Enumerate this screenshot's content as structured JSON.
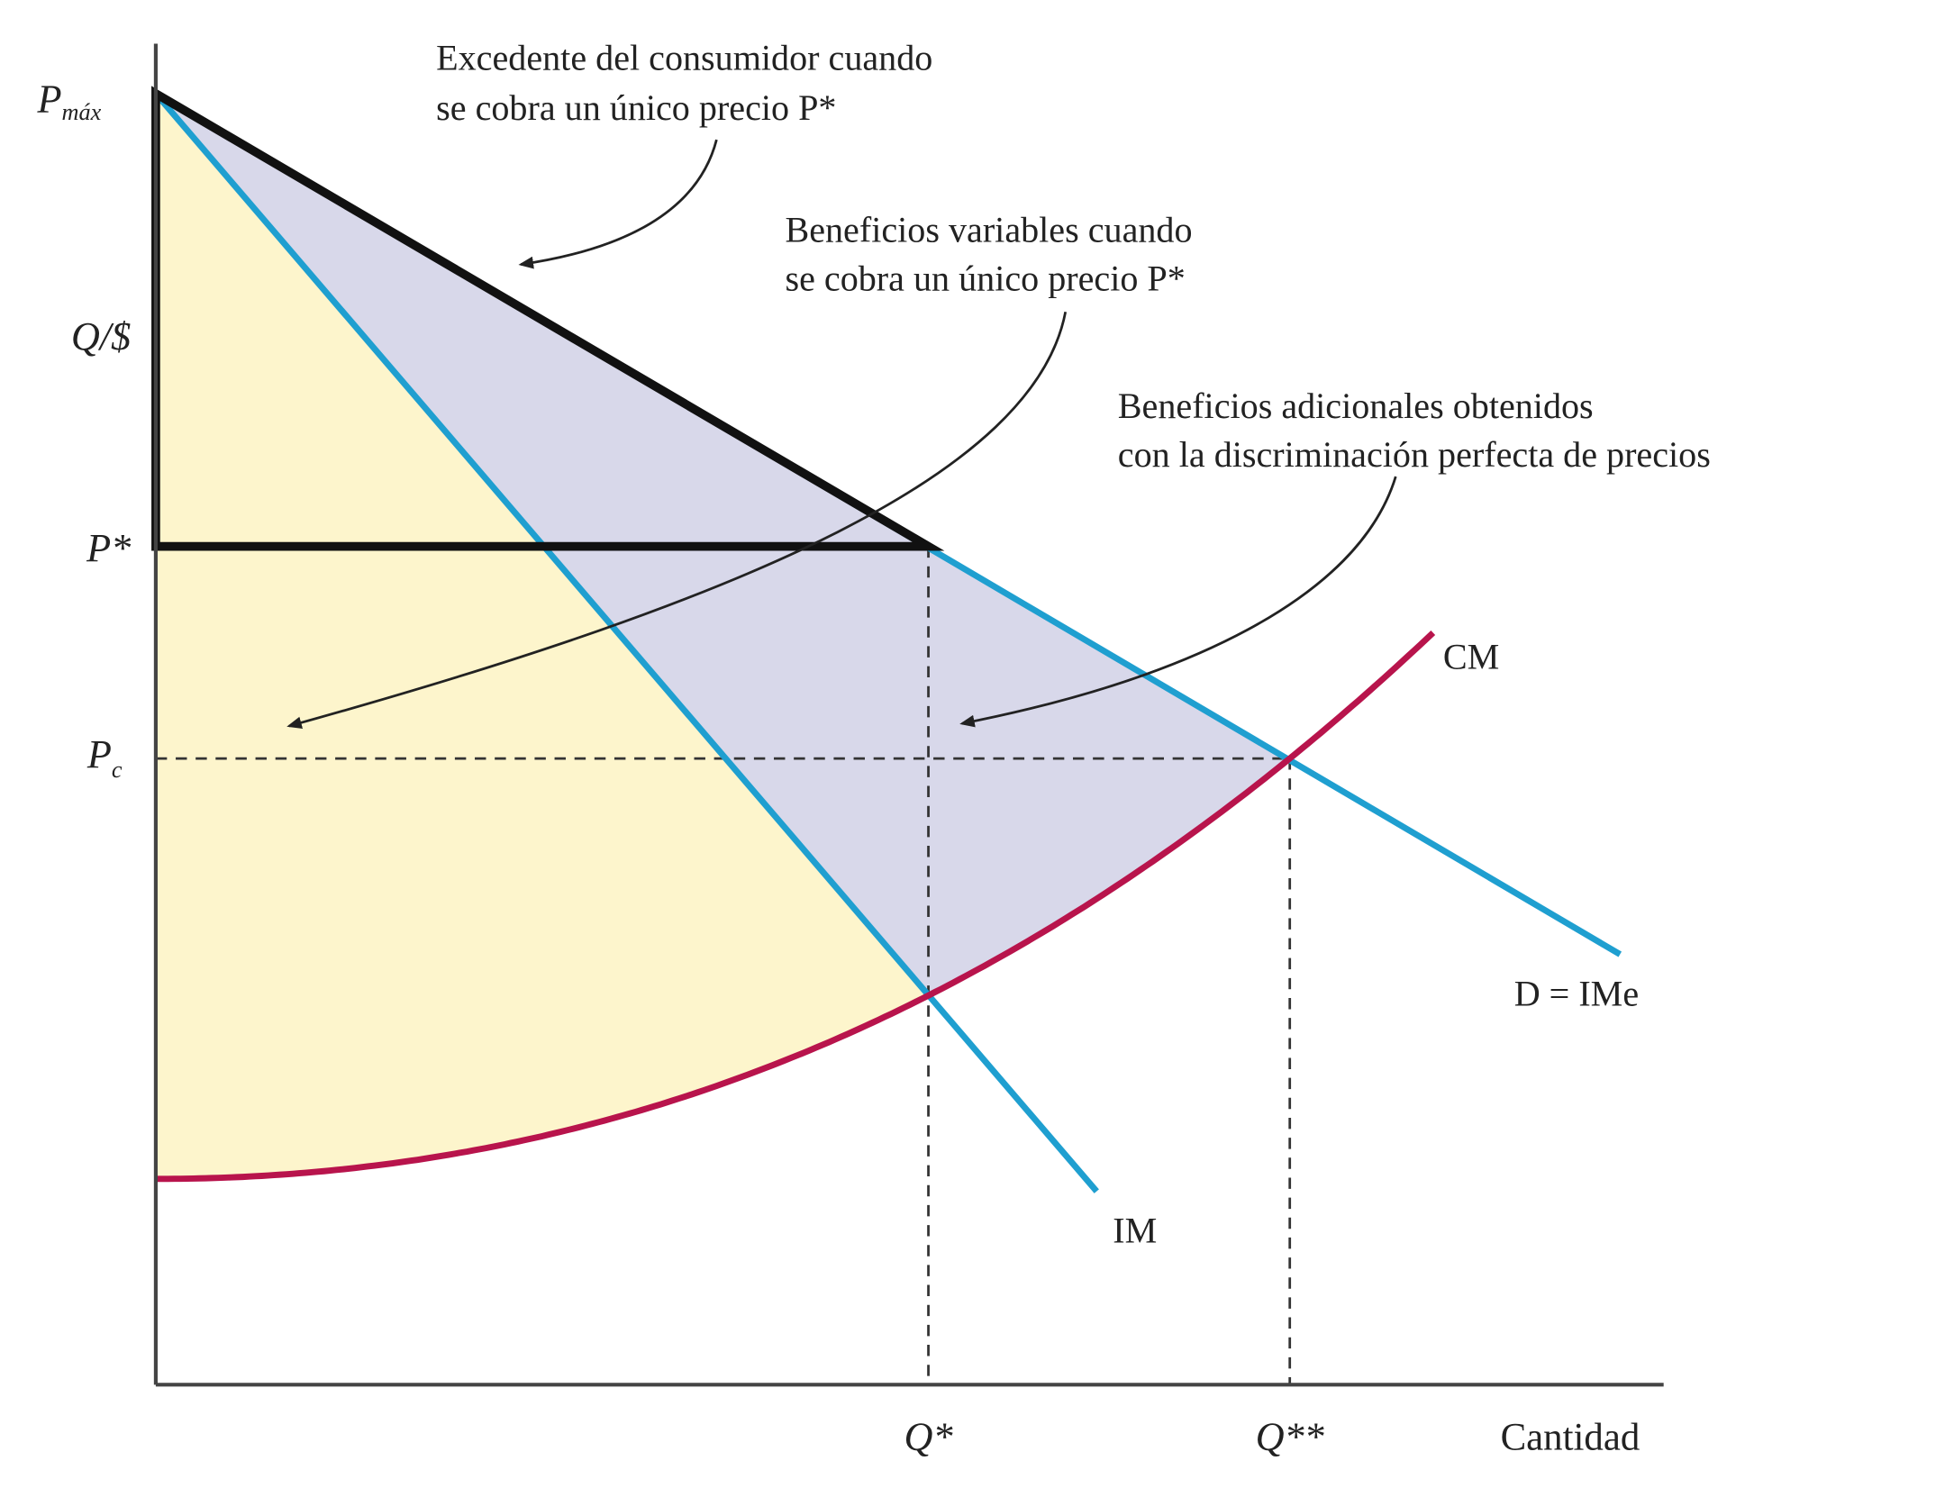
{
  "annotations": [
    {
      "lines": [
        "Excedente del consumidor cuando",
        "se cobra un único precio P*"
      ]
    },
    {
      "lines": [
        "Beneficios variables cuando",
        "se cobra un único precio P*"
      ]
    },
    {
      "lines": [
        "Beneficios adicionales obtenidos",
        "con la discriminación perfecta de precios"
      ]
    }
  ],
  "curve_labels": {
    "mc": "CM",
    "demand": "D = IMe",
    "mr": "IM"
  },
  "y_axis_labels": {
    "p_max": {
      "base": "P",
      "sub": "máx"
    },
    "unit": "Q/$",
    "p_star": "P*",
    "p_c": {
      "base": "P",
      "sub": "c"
    }
  },
  "x_axis_labels": {
    "q_star": "Q*",
    "q_double_star": "Q**",
    "quantity": "Cantidad"
  }
}
